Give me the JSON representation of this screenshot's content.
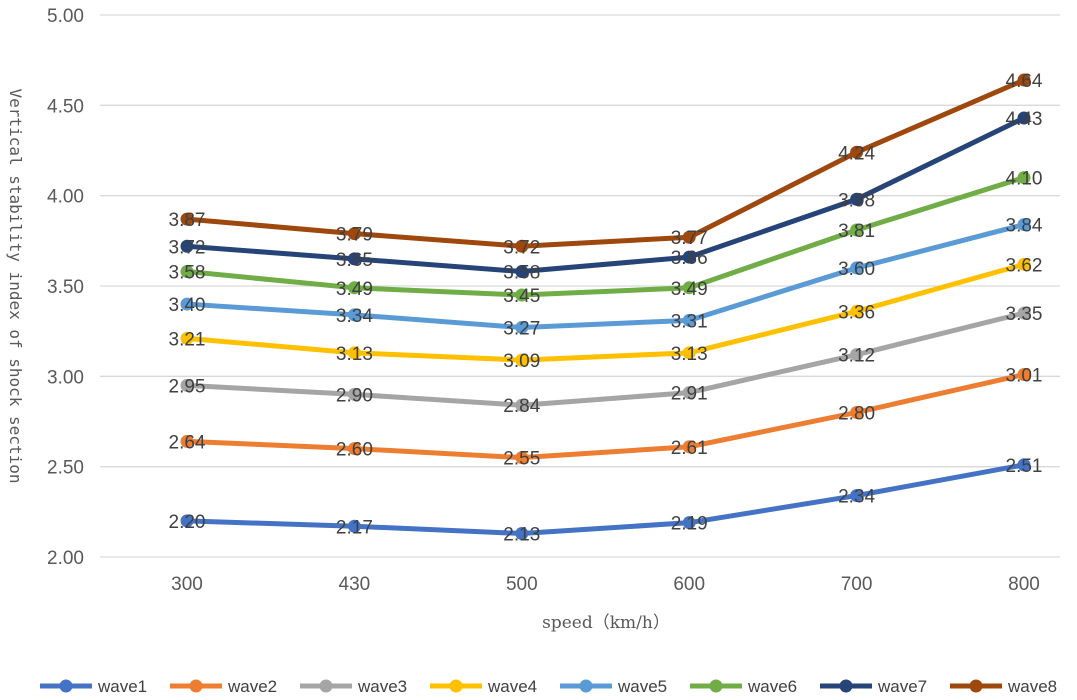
{
  "chart_data": {
    "type": "line",
    "categories": [
      "300",
      "430",
      "500",
      "600",
      "700",
      "800"
    ],
    "xlabel": "speed（km/h）",
    "ylabel": "Vertical stability index of shock section",
    "ylim": [
      2.0,
      5.0
    ],
    "yticks": [
      "2.00",
      "2.50",
      "3.00",
      "3.50",
      "4.00",
      "4.50",
      "5.00"
    ],
    "grid": true,
    "legend_position": "bottom",
    "series": [
      {
        "name": "wave1",
        "color": "#4472C4",
        "values": [
          2.2,
          2.17,
          2.13,
          2.19,
          2.34,
          2.51
        ]
      },
      {
        "name": "wave2",
        "color": "#ED7D31",
        "values": [
          2.64,
          2.6,
          2.55,
          2.61,
          2.8,
          3.01
        ]
      },
      {
        "name": "wave3",
        "color": "#A5A5A5",
        "values": [
          2.95,
          2.9,
          2.84,
          2.91,
          3.12,
          3.35
        ]
      },
      {
        "name": "wave4",
        "color": "#FFC000",
        "values": [
          3.21,
          3.13,
          3.09,
          3.13,
          3.36,
          3.62
        ]
      },
      {
        "name": "wave5",
        "color": "#5B9BD5",
        "values": [
          3.4,
          3.34,
          3.27,
          3.31,
          3.6,
          3.84
        ]
      },
      {
        "name": "wave6",
        "color": "#70AD47",
        "values": [
          3.58,
          3.49,
          3.45,
          3.49,
          3.81,
          4.1
        ]
      },
      {
        "name": "wave7",
        "color": "#264478",
        "values": [
          3.72,
          3.65,
          3.58,
          3.66,
          3.98,
          4.43
        ]
      },
      {
        "name": "wave8",
        "color": "#9E480E",
        "values": [
          3.87,
          3.79,
          3.72,
          3.77,
          4.24,
          4.64
        ]
      }
    ]
  }
}
